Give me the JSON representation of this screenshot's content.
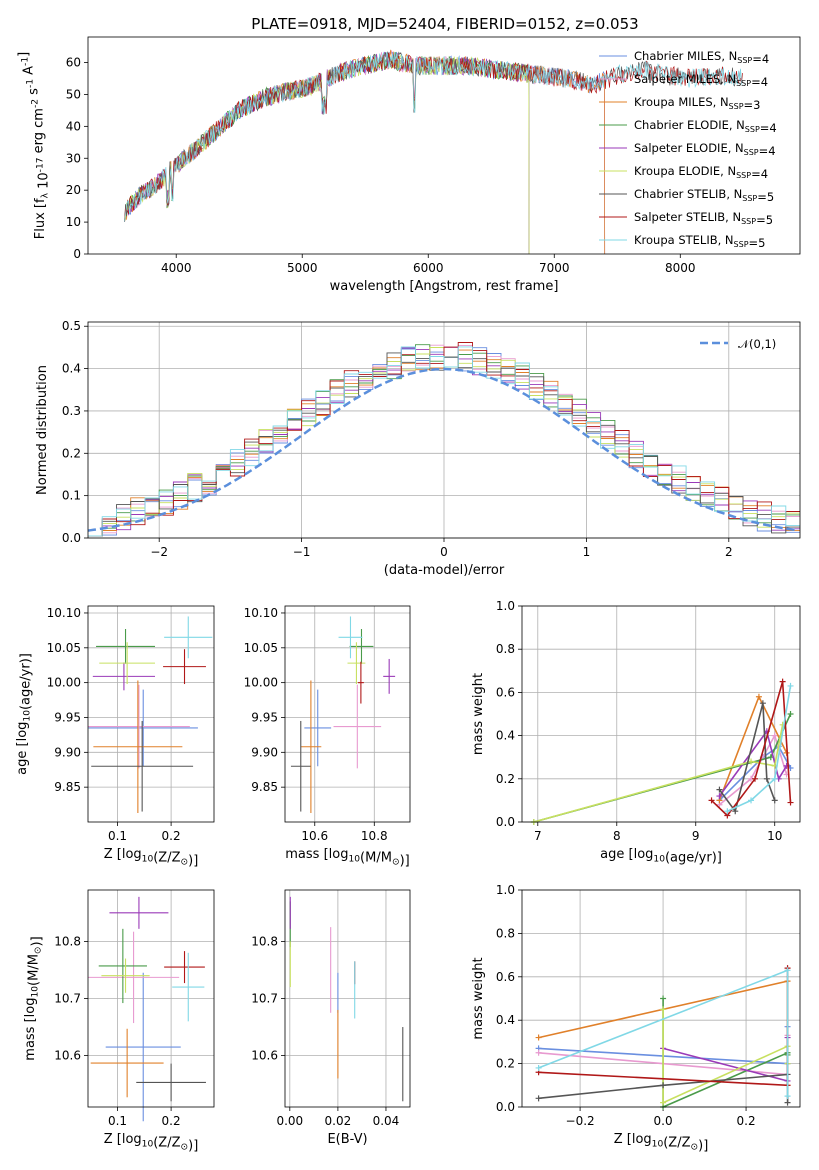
{
  "figure_title": "PLATE=0918, MJD=52404, FIBERID=0152, z=0.053",
  "colors": [
    "#6a8fe0",
    "#e89ad0",
    "#e0802a",
    "#4a9b4a",
    "#9a3ab8",
    "#c8e060",
    "#555555",
    "#b01818",
    "#80d8e6"
  ],
  "chart_data": [
    {
      "id": "spectrum",
      "type": "line",
      "title": "PLATE=0918, MJD=52404, FIBERID=0152, z=0.053",
      "xlabel": "wavelength [Angstrom, rest frame]",
      "ylabel": "Flux [f$_\\lambda$ 10$^{-17}$ erg cm$^{-2}$ s$^{-1}$ A$^{-1}$]",
      "xlim": [
        3300,
        8950
      ],
      "ylim": [
        0,
        68
      ],
      "xticks": [
        4000,
        5000,
        6000,
        7000,
        8000
      ],
      "yticks": [
        0,
        10,
        20,
        30,
        40,
        50,
        60
      ],
      "grid": false,
      "legend_position": "upper right",
      "series": [
        {
          "name": "Chabrier MILES, N$_{SSP}$=4"
        },
        {
          "name": "Salpeter MILES, N$_{SSP}$=4"
        },
        {
          "name": "Kroupa MILES, N$_{SSP}$=3"
        },
        {
          "name": "Chabrier ELODIE, N$_{SSP}$=4"
        },
        {
          "name": "Salpeter ELODIE, N$_{SSP}$=4"
        },
        {
          "name": "Kroupa ELODIE, N$_{SSP}$=4"
        },
        {
          "name": "Chabrier STELIB, N$_{SSP}$=5"
        },
        {
          "name": "Salpeter STELIB, N$_{SSP}$=5"
        },
        {
          "name": "Kroupa STELIB, N$_{SSP}$=5"
        }
      ],
      "continuum_x": [
        3590,
        3700,
        3850,
        3950,
        4100,
        4300,
        4500,
        4700,
        4900,
        5100,
        5300,
        5500,
        5700,
        5900,
        6100,
        6300,
        6500,
        6700,
        6900,
        7100,
        7300,
        7500,
        7700,
        7900,
        8100,
        8300,
        8500
      ],
      "continuum_y": [
        13,
        18,
        22,
        26,
        31,
        38,
        45,
        49,
        51,
        53,
        57,
        59,
        61,
        59,
        59,
        59,
        58,
        57,
        56,
        55,
        53,
        56,
        58,
        56,
        55,
        56,
        55
      ],
      "spectrum_end_x": {
        "MILES": 7400,
        "ELODIE": 6800,
        "STELIB": 8500
      }
    },
    {
      "id": "residual_histogram",
      "type": "histogram",
      "xlabel": "(data-model)/error",
      "ylabel": "Normed distribution",
      "xlim": [
        -2.5,
        2.5
      ],
      "ylim": [
        0,
        0.51
      ],
      "xticks": [
        -2,
        -1,
        0,
        1,
        2
      ],
      "yticks": [
        0.0,
        0.1,
        0.2,
        0.3,
        0.4,
        0.5
      ],
      "grid": true,
      "legend_position": "upper right",
      "reference_curve": {
        "name": "$\\mathcal{N}(0,1)$",
        "style": "dashed",
        "color": "#5b8fdc"
      },
      "bin_width": 0.1
    },
    {
      "id": "age_vs_Z",
      "type": "errorbar",
      "xlabel": "Z [log$_{10}$(Z/Z$_\\odot$)]",
      "ylabel": "age  [log$_{10}$(age/yr)]",
      "xlim": [
        0.045,
        0.28
      ],
      "ylim": [
        9.8,
        10.11
      ],
      "xticks": [
        0.1,
        0.2
      ],
      "yticks": [
        9.85,
        9.9,
        9.95,
        10.0,
        10.05,
        10.1
      ],
      "grid": true,
      "points": [
        {
          "x": 0.148,
          "xerr": 0.102,
          "y": 9.935,
          "yerr": 0.055
        },
        {
          "x": 0.14,
          "xerr": 0.095,
          "y": 9.937,
          "yerr": 0.06
        },
        {
          "x": 0.138,
          "xerr": 0.083,
          "y": 9.908,
          "yerr": 0.095
        },
        {
          "x": 0.115,
          "xerr": 0.055,
          "y": 10.052,
          "yerr": 0.025
        },
        {
          "x": 0.112,
          "xerr": 0.058,
          "y": 10.009,
          "yerr": 0.02
        },
        {
          "x": 0.118,
          "xerr": 0.052,
          "y": 10.028,
          "yerr": 0.03
        },
        {
          "x": 0.146,
          "xerr": 0.095,
          "y": 9.88,
          "yerr": 0.065
        },
        {
          "x": 0.225,
          "xerr": 0.04,
          "y": 10.023,
          "yerr": 0.025
        },
        {
          "x": 0.232,
          "xerr": 0.045,
          "y": 10.065,
          "yerr": 0.03
        }
      ]
    },
    {
      "id": "age_vs_mass",
      "type": "errorbar",
      "xlabel": "mass [log$_{10}$(M/M$_\\odot$)]",
      "ylabel": "",
      "xlim": [
        10.5,
        10.92
      ],
      "ylim": [
        9.8,
        10.11
      ],
      "xticks": [
        10.6,
        10.8
      ],
      "yticks": [
        9.85,
        9.9,
        9.95,
        10.0,
        10.05,
        10.1
      ],
      "grid": true,
      "points": [
        {
          "x": 10.61,
          "xerr": 0.045,
          "y": 9.935,
          "yerr": 0.055
        },
        {
          "x": 10.743,
          "xerr": 0.08,
          "y": 9.937,
          "yerr": 0.06
        },
        {
          "x": 10.587,
          "xerr": 0.035,
          "y": 9.908,
          "yerr": 0.095
        },
        {
          "x": 10.757,
          "xerr": 0.04,
          "y": 10.052,
          "yerr": 0.025
        },
        {
          "x": 10.85,
          "xerr": 0.02,
          "y": 10.009,
          "yerr": 0.025
        },
        {
          "x": 10.74,
          "xerr": 0.03,
          "y": 10.028,
          "yerr": 0.03
        },
        {
          "x": 10.553,
          "xerr": 0.033,
          "y": 9.88,
          "yerr": 0.065
        },
        {
          "x": 10.755,
          "xerr": 0.01,
          "y": 10.0,
          "yerr": 0.03
        },
        {
          "x": 10.72,
          "xerr": 0.04,
          "y": 10.065,
          "yerr": 0.03
        }
      ]
    },
    {
      "id": "mass_weight_vs_age",
      "type": "line",
      "xlabel": "age  [log$_{10}$(age/yr)]",
      "ylabel": "mass weight",
      "xlim": [
        6.8,
        10.32
      ],
      "ylim": [
        0,
        1.0
      ],
      "xticks": [
        7,
        8,
        9,
        10
      ],
      "yticks": [
        0.0,
        0.2,
        0.4,
        0.6,
        0.8,
        1.0
      ],
      "grid": true,
      "series": [
        {
          "x": [
            9.3,
            9.85,
            10.05,
            10.2
          ],
          "y": [
            0.1,
            0.3,
            0.35,
            0.25
          ]
        },
        {
          "x": [
            9.3,
            9.7,
            10.0,
            10.15
          ],
          "y": [
            0.08,
            0.2,
            0.4,
            0.22
          ]
        },
        {
          "x": [
            9.3,
            9.8,
            10.15
          ],
          "y": [
            0.1,
            0.58,
            0.32
          ]
        },
        {
          "x": [
            6.95,
            9.95,
            10.2
          ],
          "y": [
            0.0,
            0.3,
            0.5
          ]
        },
        {
          "x": [
            9.3,
            9.9,
            10.05,
            10.15
          ],
          "y": [
            0.12,
            0.42,
            0.2,
            0.26
          ]
        },
        {
          "x": [
            6.95,
            9.7,
            10.0,
            10.1
          ],
          "y": [
            0.0,
            0.28,
            0.26,
            0.45
          ]
        },
        {
          "x": [
            9.3,
            9.5,
            9.85,
            9.9,
            10.0
          ],
          "y": [
            0.15,
            0.05,
            0.55,
            0.2,
            0.1
          ]
        },
        {
          "x": [
            9.2,
            9.4,
            9.75,
            10.1,
            10.2
          ],
          "y": [
            0.1,
            0.03,
            0.2,
            0.65,
            0.09
          ]
        },
        {
          "x": [
            9.4,
            9.7,
            10.0,
            10.2
          ],
          "y": [
            0.05,
            0.1,
            0.2,
            0.63
          ]
        }
      ]
    },
    {
      "id": "mass_vs_Z",
      "type": "errorbar",
      "xlabel": "Z [log$_{10}$(Z/Z$_\\odot$)]",
      "ylabel": "mass [log$_{10}$(M/M$_\\odot$)]",
      "xlim": [
        0.045,
        0.28
      ],
      "ylim": [
        10.51,
        10.89
      ],
      "xticks": [
        0.1,
        0.2
      ],
      "yticks": [
        10.6,
        10.7,
        10.8
      ],
      "grid": true,
      "points": [
        {
          "x": 0.148,
          "xerr": 0.07,
          "y": 10.615,
          "yerr": 0.13
        },
        {
          "x": 0.13,
          "xerr": 0.085,
          "y": 10.737,
          "yerr": 0.08
        },
        {
          "x": 0.118,
          "xerr": 0.068,
          "y": 10.587,
          "yerr": 0.06
        },
        {
          "x": 0.11,
          "xerr": 0.045,
          "y": 10.757,
          "yerr": 0.065
        },
        {
          "x": 0.14,
          "xerr": 0.055,
          "y": 10.85,
          "yerr": 0.028
        },
        {
          "x": 0.115,
          "xerr": 0.045,
          "y": 10.74,
          "yerr": 0.03
        },
        {
          "x": 0.2,
          "xerr": 0.065,
          "y": 10.553,
          "yerr": 0.033
        },
        {
          "x": 0.225,
          "xerr": 0.038,
          "y": 10.755,
          "yerr": 0.028
        },
        {
          "x": 0.232,
          "xerr": 0.03,
          "y": 10.72,
          "yerr": 0.06
        }
      ]
    },
    {
      "id": "mass_vs_EBV",
      "type": "errorbar",
      "xlabel": "E(B-V)",
      "ylabel": "",
      "xlim": [
        -0.002,
        0.05
      ],
      "ylim": [
        10.51,
        10.89
      ],
      "xticks": [
        0.0,
        0.02,
        0.04
      ],
      "yticks": [
        10.6,
        10.7,
        10.8
      ],
      "grid": true,
      "points": [
        {
          "x": 0.02,
          "y": 10.71,
          "yerr": 0.035
        },
        {
          "x": 0.017,
          "y": 10.75,
          "yerr": 0.075
        },
        {
          "x": 0.02,
          "y": 10.62,
          "yerr": 0.06
        },
        {
          "x": 0.0002,
          "y": 10.83,
          "yerr": 0.04
        },
        {
          "x": 0.0002,
          "y": 10.85,
          "yerr": 0.028
        },
        {
          "x": 0.0002,
          "y": 10.76,
          "yerr": 0.04
        },
        {
          "x": 0.047,
          "y": 10.585,
          "yerr": 0.065
        },
        {
          "x": 0.027,
          "y": 10.745,
          "yerr": 0.02
        },
        {
          "x": 0.027,
          "y": 10.715,
          "yerr": 0.05
        }
      ]
    },
    {
      "id": "mass_weight_vs_Z",
      "type": "line",
      "xlabel": "Z [log$_{10}$(Z/Z$_\\odot$)]",
      "ylabel": "mass weight",
      "xlim": [
        -0.34,
        0.33
      ],
      "ylim": [
        0,
        1.0
      ],
      "xticks": [
        -0.2,
        0.0,
        0.2
      ],
      "yticks": [
        0.0,
        0.2,
        0.4,
        0.6,
        0.8,
        1.0
      ],
      "grid": true,
      "series": [
        {
          "x": [
            -0.3,
            0.3,
            0.3
          ],
          "y": [
            0.27,
            0.2,
            0.37
          ]
        },
        {
          "x": [
            -0.3,
            0.3,
            0.3
          ],
          "y": [
            0.25,
            0.15,
            0.33
          ]
        },
        {
          "x": [
            -0.3,
            0.3,
            0.3
          ],
          "y": [
            0.32,
            0.58,
            0.1
          ]
        },
        {
          "x": [
            0.0,
            0.0,
            0.3,
            0.3
          ],
          "y": [
            0.5,
            0.0,
            0.25,
            0.24
          ]
        },
        {
          "x": [
            0.0,
            0.3,
            0.3
          ],
          "y": [
            0.27,
            0.12,
            0.32
          ]
        },
        {
          "x": [
            0.0,
            0.0,
            0.3,
            0.3
          ],
          "y": [
            0.45,
            0.02,
            0.28,
            0.2
          ]
        },
        {
          "x": [
            -0.3,
            0.0,
            0.3,
            0.3
          ],
          "y": [
            0.04,
            0.1,
            0.15,
            0.02
          ]
        },
        {
          "x": [
            -0.3,
            0.3,
            0.3
          ],
          "y": [
            0.16,
            0.1,
            0.64
          ]
        },
        {
          "x": [
            -0.3,
            0.3,
            0.3
          ],
          "y": [
            0.18,
            0.63,
            0.05
          ]
        }
      ]
    }
  ]
}
